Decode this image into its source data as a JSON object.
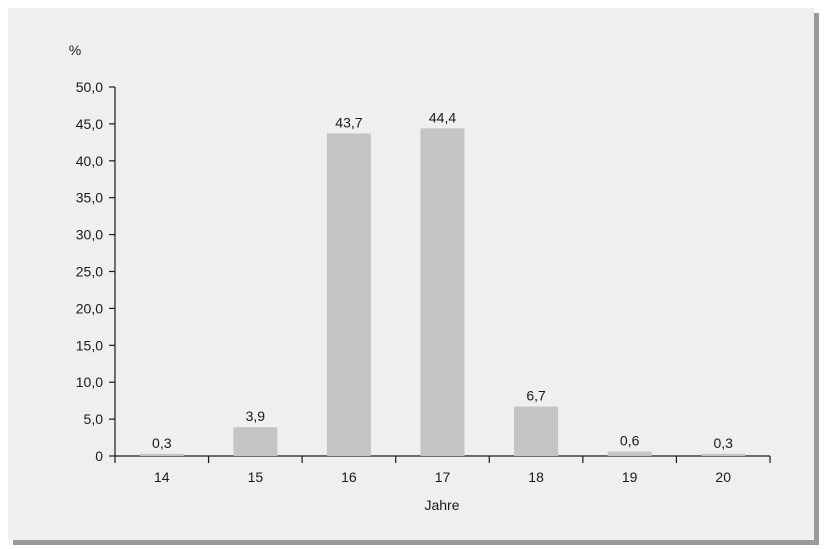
{
  "chart_data": {
    "type": "bar",
    "ylabel": "%",
    "xlabel": "Jahre",
    "categories": [
      "14",
      "15",
      "16",
      "17",
      "18",
      "19",
      "20"
    ],
    "values": [
      0.3,
      3.9,
      43.7,
      44.4,
      6.7,
      0.6,
      0.3
    ],
    "value_labels": [
      "0,3",
      "3,9",
      "43,7",
      "44,4",
      "6,7",
      "0,6",
      "0,3"
    ],
    "ylim": [
      0,
      50
    ],
    "yticks": [
      0,
      5,
      10,
      15,
      20,
      25,
      30,
      35,
      40,
      45,
      50
    ],
    "ytick_labels": [
      "0",
      "5,0",
      "10,0",
      "15,0",
      "20,0",
      "25,0",
      "30,0",
      "35,0",
      "40,0",
      "45,0",
      "50,0"
    ],
    "grid": false,
    "colors": {
      "bar": "#c4c4c4",
      "panel": "#efefef",
      "axis": "#1a1a1a"
    }
  }
}
